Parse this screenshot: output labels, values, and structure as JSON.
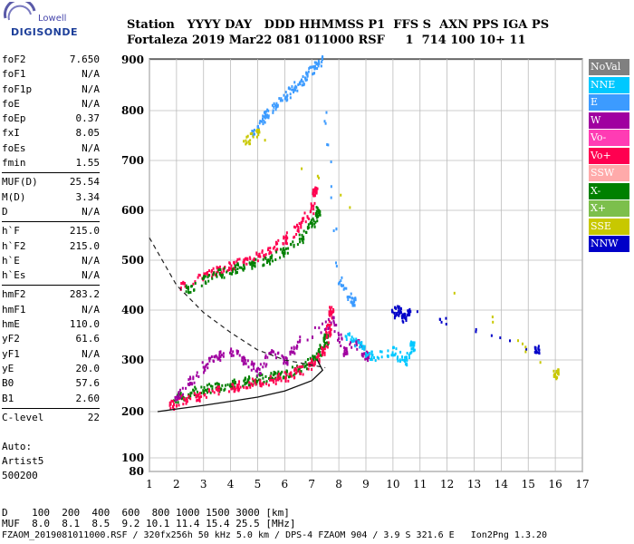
{
  "logo": {
    "brand": "Lowell",
    "name": "DIGISONDE"
  },
  "header": {
    "line1": "Station   YYYY DAY   DDD HHMMSS P1  FFS S  AXN PPS IGA PS",
    "line2": "Fortaleza 2019 Mar22 081 011000 RSF     1  714 100 10+ 11"
  },
  "params": [
    {
      "k": "foF2",
      "v": "7.650"
    },
    {
      "k": "foF1",
      "v": "N/A"
    },
    {
      "k": "foF1p",
      "v": "N/A"
    },
    {
      "k": "foE",
      "v": "N/A"
    },
    {
      "k": "foEp",
      "v": "0.37"
    },
    {
      "k": "fxI",
      "v": "8.05"
    },
    {
      "k": "foEs",
      "v": "N/A"
    },
    {
      "k": "fmin",
      "v": "1.55"
    },
    {
      "k": "MUF(D)",
      "v": "25.54",
      "sep": true
    },
    {
      "k": "M(D)",
      "v": "3.34"
    },
    {
      "k": "D",
      "v": "N/A"
    },
    {
      "k": "h`F",
      "v": "215.0",
      "sep": true
    },
    {
      "k": "h`F2",
      "v": "215.0"
    },
    {
      "k": "h`E",
      "v": "N/A"
    },
    {
      "k": "h`Es",
      "v": "N/A"
    },
    {
      "k": "hmF2",
      "v": "283.2",
      "sep": true
    },
    {
      "k": "hmF1",
      "v": "N/A"
    },
    {
      "k": "hmE",
      "v": "110.0"
    },
    {
      "k": "yF2",
      "v": "61.6"
    },
    {
      "k": "yF1",
      "v": "N/A"
    },
    {
      "k": "yE",
      "v": "20.0"
    },
    {
      "k": "B0",
      "v": "57.6"
    },
    {
      "k": "B1",
      "v": "2.60"
    },
    {
      "k": "C-level",
      "v": "22",
      "sep": true
    }
  ],
  "auto": {
    "l1": "Auto:",
    "l2": "Artist5",
    "l3": "500200"
  },
  "legend": [
    {
      "label": "NoVal",
      "color": "#808080"
    },
    {
      "label": "NNE",
      "color": "#00c8ff"
    },
    {
      "label": "E",
      "color": "#3c9bff"
    },
    {
      "label": "W",
      "color": "#a000a0"
    },
    {
      "label": "Vo-",
      "color": "#ff3cb4"
    },
    {
      "label": "Vo+",
      "color": "#ff0050"
    },
    {
      "label": "SSW",
      "color": "#ffaaaa"
    },
    {
      "label": "X-",
      "color": "#008000"
    },
    {
      "label": "X+",
      "color": "#7cbf4c"
    },
    {
      "label": "SSE",
      "color": "#c8c800"
    },
    {
      "label": "NNW",
      "color": "#0000c8"
    }
  ],
  "footer": {
    "line1": "D    100  200  400  600  800 1000 1500 3000 [km]",
    "line2": "MUF  8.0  8.1  8.5  9.2 10.1 11.4 15.4 25.5 [MHz]",
    "line3": "FZAOM_2019081011000.RSF / 320fx256h 50 kHz 5.0 km / DPS-4 FZAOM 904 / 3.9 S 321.6 E   Ion2Png 1.3.20"
  },
  "chart_data": {
    "type": "scatter",
    "xlim": [
      1,
      17
    ],
    "ylim": [
      80,
      900
    ],
    "x_ticks": [
      1,
      2,
      3,
      4,
      5,
      6,
      7,
      8,
      9,
      10,
      11,
      12,
      13,
      14,
      15,
      16,
      17
    ],
    "y_ticks": [
      80,
      100,
      200,
      300,
      400,
      500,
      600,
      700,
      800,
      900
    ],
    "grid": true,
    "series": [
      {
        "name": "X-",
        "color": "#008000",
        "x": [
          1.9,
          2.5,
          3.0,
          3.5,
          4.0,
          4.5,
          5.0,
          5.5,
          6.0,
          6.5,
          7.0,
          7.3,
          7.5
        ],
        "y": [
          225,
          238,
          245,
          250,
          255,
          260,
          265,
          270,
          275,
          285,
          300,
          320,
          345
        ]
      },
      {
        "name": "Vo+",
        "color": "#ff0050",
        "x": [
          1.8,
          2.2,
          2.8,
          3.5,
          4.2,
          4.8,
          5.5,
          6.0,
          6.5,
          7.0,
          7.4,
          7.6,
          7.7
        ],
        "y": [
          215,
          225,
          232,
          242,
          252,
          258,
          262,
          270,
          280,
          295,
          320,
          360,
          400
        ]
      },
      {
        "name": "W",
        "color": "#a000a0",
        "x": [
          2.0,
          2.5,
          3.0,
          3.5,
          4.0,
          4.5,
          5.0,
          5.5,
          6.0,
          6.5,
          7.8,
          8.2,
          8.6,
          9.0
        ],
        "y": [
          230,
          260,
          290,
          310,
          320,
          300,
          280,
          320,
          300,
          340,
          380,
          320,
          340,
          310
        ]
      },
      {
        "name": "Vo+",
        "color": "#ff0050",
        "x": [
          2.2,
          3.0,
          3.5,
          4.0,
          4.5,
          5.0,
          5.5,
          6.0,
          6.5,
          7.0,
          7.1
        ],
        "y": [
          450,
          470,
          480,
          490,
          500,
          510,
          525,
          545,
          570,
          605,
          640
        ]
      },
      {
        "name": "X-",
        "color": "#008000",
        "x": [
          2.4,
          3.0,
          3.6,
          4.2,
          4.8,
          5.4,
          6.0,
          6.6,
          7.0,
          7.2
        ],
        "y": [
          445,
          462,
          475,
          485,
          495,
          505,
          520,
          545,
          575,
          600
        ]
      },
      {
        "name": "E",
        "color": "#3c9bff",
        "x": [
          4.8,
          5.2,
          5.6,
          6.0,
          6.4,
          6.8,
          7.1,
          7.3,
          8.0,
          8.5
        ],
        "y": [
          760,
          790,
          810,
          830,
          850,
          870,
          890,
          900,
          460,
          420
        ]
      },
      {
        "name": "NNE",
        "color": "#00c8ff",
        "x": [
          8.3,
          8.8,
          9.2,
          10.0,
          10.4,
          10.7
        ],
        "y": [
          350,
          330,
          310,
          320,
          300,
          330
        ]
      },
      {
        "name": "NNW",
        "color": "#0000c8",
        "x": [
          10.0,
          10.2,
          10.4,
          10.6,
          15.3
        ],
        "y": [
          395,
          405,
          385,
          400,
          322
        ]
      },
      {
        "name": "SSE",
        "color": "#c8c800",
        "x": [
          4.5,
          5.0,
          16.0
        ],
        "y": [
          740,
          760,
          275
        ]
      }
    ],
    "trace_dashed": {
      "x": [
        1,
        2,
        3,
        4,
        5,
        6,
        7,
        7.5
      ],
      "y": [
        545,
        450,
        395,
        355,
        320,
        300,
        290,
        285
      ]
    },
    "trace_solid": {
      "x": [
        1.3,
        2.0,
        3.0,
        4.0,
        5.0,
        6.0,
        7.0,
        7.4,
        7.2
      ],
      "y": [
        200,
        205,
        212,
        220,
        228,
        240,
        260,
        280,
        300
      ]
    }
  }
}
